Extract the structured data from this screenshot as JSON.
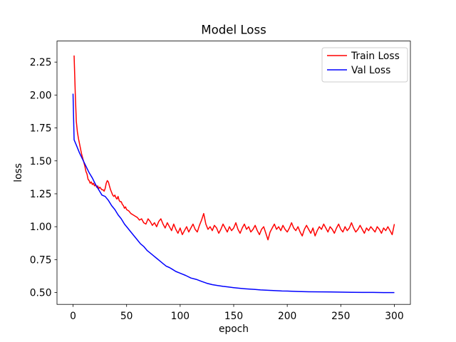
{
  "figure": {
    "background": "#ffffff",
    "text_color": "#000000"
  },
  "chart_data": {
    "type": "line",
    "title": "Model Loss",
    "xlabel": "epoch",
    "ylabel": "loss",
    "xlim": [
      -15,
      315
    ],
    "ylim": [
      0.41,
      2.41
    ],
    "grid": false,
    "xticks": [
      0,
      50,
      100,
      150,
      200,
      250,
      300
    ],
    "xticklabels": [
      "0",
      "50",
      "100",
      "150",
      "200",
      "250",
      "300"
    ],
    "yticks": [
      0.5,
      0.75,
      1.0,
      1.25,
      1.5,
      1.75,
      2.0,
      2.25
    ],
    "yticklabels": [
      "0.50",
      "0.75",
      "1.00",
      "1.25",
      "1.50",
      "1.75",
      "2.00",
      "2.25"
    ],
    "legend": {
      "position": "upper right",
      "border_color": "#cccccc",
      "background": "#ffffff",
      "entries": [
        "Train Loss",
        "Val Loss"
      ]
    },
    "series": [
      {
        "name": "Train Loss",
        "color": "#ff0000",
        "x": [
          1,
          2,
          3,
          4,
          5,
          6,
          7,
          8,
          9,
          10,
          11,
          12,
          13,
          14,
          15,
          16,
          17,
          18,
          19,
          20,
          21,
          22,
          23,
          24,
          25,
          26,
          27,
          28,
          29,
          30,
          31,
          32,
          33,
          34,
          35,
          36,
          37,
          38,
          39,
          40,
          41,
          42,
          43,
          44,
          45,
          46,
          47,
          48,
          49,
          50,
          52,
          54,
          56,
          58,
          60,
          62,
          64,
          66,
          68,
          70,
          72,
          74,
          76,
          78,
          80,
          82,
          84,
          86,
          88,
          90,
          92,
          94,
          96,
          98,
          100,
          102,
          104,
          106,
          108,
          110,
          112,
          114,
          116,
          118,
          120,
          122,
          124,
          126,
          128,
          130,
          132,
          134,
          136,
          138,
          140,
          142,
          144,
          146,
          148,
          150,
          152,
          154,
          156,
          158,
          160,
          162,
          164,
          166,
          168,
          170,
          172,
          174,
          176,
          178,
          180,
          182,
          184,
          186,
          188,
          190,
          192,
          194,
          196,
          198,
          200,
          202,
          204,
          206,
          208,
          210,
          212,
          214,
          216,
          218,
          220,
          222,
          224,
          226,
          228,
          230,
          232,
          234,
          236,
          238,
          240,
          242,
          244,
          246,
          248,
          250,
          252,
          254,
          256,
          258,
          260,
          262,
          264,
          266,
          268,
          270,
          272,
          274,
          276,
          278,
          280,
          282,
          284,
          286,
          288,
          290,
          292,
          294,
          296,
          298,
          300
        ],
        "y": [
          2.3,
          2.02,
          1.8,
          1.72,
          1.67,
          1.63,
          1.59,
          1.55,
          1.52,
          1.49,
          1.46,
          1.42,
          1.4,
          1.36,
          1.35,
          1.33,
          1.34,
          1.32,
          1.33,
          1.31,
          1.32,
          1.3,
          1.31,
          1.29,
          1.3,
          1.29,
          1.28,
          1.28,
          1.27,
          1.29,
          1.33,
          1.35,
          1.34,
          1.31,
          1.28,
          1.26,
          1.24,
          1.23,
          1.24,
          1.22,
          1.21,
          1.23,
          1.2,
          1.19,
          1.19,
          1.17,
          1.16,
          1.14,
          1.15,
          1.13,
          1.12,
          1.1,
          1.09,
          1.08,
          1.07,
          1.05,
          1.06,
          1.03,
          1.02,
          1.06,
          1.04,
          1.01,
          1.03,
          1.0,
          1.04,
          1.06,
          1.02,
          0.99,
          1.03,
          1.0,
          0.97,
          1.02,
          0.98,
          0.95,
          0.99,
          0.94,
          0.97,
          1.0,
          0.96,
          0.99,
          1.02,
          0.98,
          0.96,
          1.01,
          1.05,
          1.1,
          1.02,
          0.98,
          1.0,
          0.97,
          1.01,
          0.99,
          0.95,
          0.98,
          1.02,
          0.99,
          0.96,
          1.0,
          0.97,
          0.99,
          1.03,
          0.98,
          0.95,
          0.99,
          1.02,
          0.98,
          1.0,
          0.96,
          0.98,
          1.01,
          0.97,
          0.94,
          0.98,
          1.0,
          0.95,
          0.9,
          0.96,
          0.99,
          1.02,
          0.98,
          1.0,
          0.97,
          1.01,
          0.98,
          0.96,
          0.99,
          1.03,
          0.99,
          0.97,
          1.0,
          0.96,
          0.93,
          0.98,
          1.01,
          0.98,
          0.95,
          0.99,
          0.93,
          0.97,
          1.0,
          0.98,
          1.02,
          0.99,
          0.96,
          1.0,
          0.98,
          0.95,
          0.99,
          1.02,
          0.98,
          0.96,
          1.0,
          0.97,
          0.99,
          1.03,
          0.99,
          0.96,
          0.98,
          1.01,
          0.98,
          0.95,
          0.99,
          0.97,
          1.0,
          0.98,
          0.96,
          1.0,
          0.98,
          0.95,
          0.99,
          0.97,
          1.0,
          0.97,
          0.94,
          1.02
        ]
      },
      {
        "name": "Val Loss",
        "color": "#0000ff",
        "x": [
          0,
          1,
          3,
          6,
          9,
          12,
          15,
          18,
          21,
          24,
          27,
          30,
          33,
          36,
          39,
          42,
          45,
          48,
          51,
          54,
          57,
          60,
          63,
          66,
          69,
          72,
          75,
          78,
          81,
          84,
          87,
          90,
          93,
          96,
          99,
          102,
          105,
          110,
          115,
          120,
          125,
          130,
          135,
          140,
          145,
          150,
          155,
          160,
          165,
          170,
          175,
          180,
          185,
          190,
          195,
          200,
          210,
          220,
          230,
          240,
          250,
          260,
          270,
          280,
          290,
          300
        ],
        "y": [
          2.01,
          1.66,
          1.62,
          1.56,
          1.51,
          1.46,
          1.41,
          1.37,
          1.32,
          1.28,
          1.24,
          1.23,
          1.2,
          1.16,
          1.13,
          1.09,
          1.06,
          1.02,
          0.99,
          0.96,
          0.93,
          0.9,
          0.87,
          0.85,
          0.82,
          0.8,
          0.78,
          0.76,
          0.74,
          0.72,
          0.7,
          0.69,
          0.675,
          0.66,
          0.65,
          0.64,
          0.63,
          0.61,
          0.6,
          0.585,
          0.57,
          0.56,
          0.553,
          0.547,
          0.542,
          0.537,
          0.533,
          0.529,
          0.526,
          0.523,
          0.52,
          0.518,
          0.516,
          0.514,
          0.512,
          0.511,
          0.508,
          0.506,
          0.505,
          0.504,
          0.503,
          0.502,
          0.501,
          0.501,
          0.5,
          0.5
        ]
      }
    ]
  }
}
